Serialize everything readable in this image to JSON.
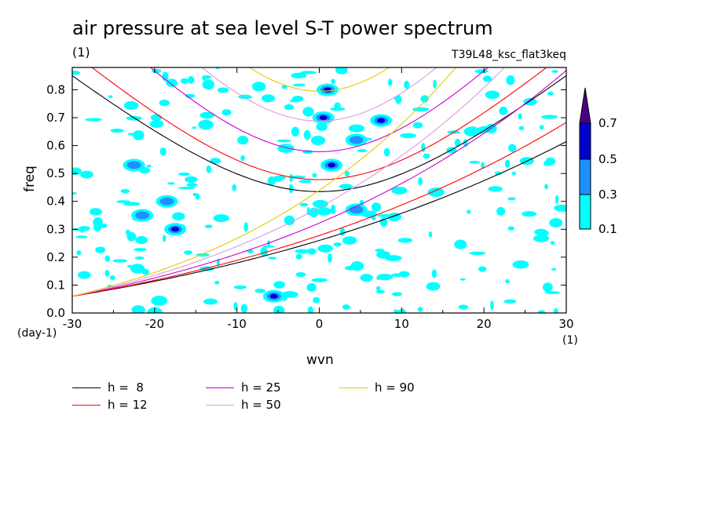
{
  "header": {
    "title": "air pressure at sea level S-T power spectrum",
    "subtitle": "(1)",
    "run_name": "T39L48_ksc_flat3keq"
  },
  "axes": {
    "ylabel": "freq",
    "yunit": "(day-1)",
    "xlabel": "wvn",
    "xunit": "(1)",
    "xticks": [
      "-30",
      "-20",
      "-10",
      "0",
      "10",
      "20",
      "30"
    ],
    "yticks": [
      "0.0",
      "0.1",
      "0.2",
      "0.3",
      "0.4",
      "0.5",
      "0.6",
      "0.7",
      "0.8"
    ]
  },
  "colorbar": {
    "labels": [
      "0.1",
      "0.3",
      "0.5",
      "0.7"
    ],
    "colors": [
      "#00ffff",
      "#1e90ff",
      "#0000cd",
      "#4b0082"
    ]
  },
  "legend": [
    {
      "label": "h =  8",
      "color": "#000000"
    },
    {
      "label": "h = 12",
      "color": "#ff0000"
    },
    {
      "label": "h = 25",
      "color": "#cc00cc"
    },
    {
      "label": "h = 50",
      "color": "#dd99dd"
    },
    {
      "label": "h = 90",
      "color": "#e6c800"
    }
  ],
  "chart_data": {
    "type": "heatmap",
    "title": "air pressure at sea level S-T power spectrum",
    "xlabel": "wvn",
    "ylabel": "freq",
    "xlim": [
      -30,
      30
    ],
    "ylim": [
      0.0,
      0.88
    ],
    "contour_levels": [
      0.1,
      0.3,
      0.5,
      0.7
    ],
    "dispersion_curves": [
      {
        "name": "h =  8",
        "color": "#000000",
        "family": "inertia-gravity",
        "min_freq": 0.435,
        "k_at_min": 0
      },
      {
        "name": "h = 12",
        "color": "#ff0000",
        "family": "inertia-gravity",
        "min_freq": 0.478,
        "k_at_min": 0
      },
      {
        "name": "h = 25",
        "color": "#cc00cc",
        "family": "inertia-gravity",
        "min_freq": 0.578,
        "k_at_min": 0
      },
      {
        "name": "h = 50",
        "color": "#dd99dd",
        "family": "inertia-gravity",
        "min_freq": 0.688,
        "k_at_min": 0
      },
      {
        "name": "h = 90",
        "color": "#e6c800",
        "family": "inertia-gravity",
        "min_freq": 0.795,
        "k_at_min": 0
      }
    ],
    "power_maxima": [
      {
        "x": -17.5,
        "y": 0.3,
        "value": 0.5
      },
      {
        "x": 1.0,
        "y": 0.8,
        "value": 0.5
      },
      {
        "x": 0.5,
        "y": 0.7,
        "value": 0.5
      },
      {
        "x": 1.5,
        "y": 0.53,
        "value": 0.5
      },
      {
        "x": -5.5,
        "y": 0.06,
        "value": 0.5
      },
      {
        "x": 7.5,
        "y": 0.69,
        "value": 0.5
      },
      {
        "x": -21.5,
        "y": 0.35,
        "value": 0.3
      },
      {
        "x": -18.5,
        "y": 0.4,
        "value": 0.3
      },
      {
        "x": -22.5,
        "y": 0.53,
        "value": 0.3
      },
      {
        "x": 4.5,
        "y": 0.62,
        "value": 0.3
      },
      {
        "x": 4.5,
        "y": 0.37,
        "value": 0.3
      }
    ]
  }
}
